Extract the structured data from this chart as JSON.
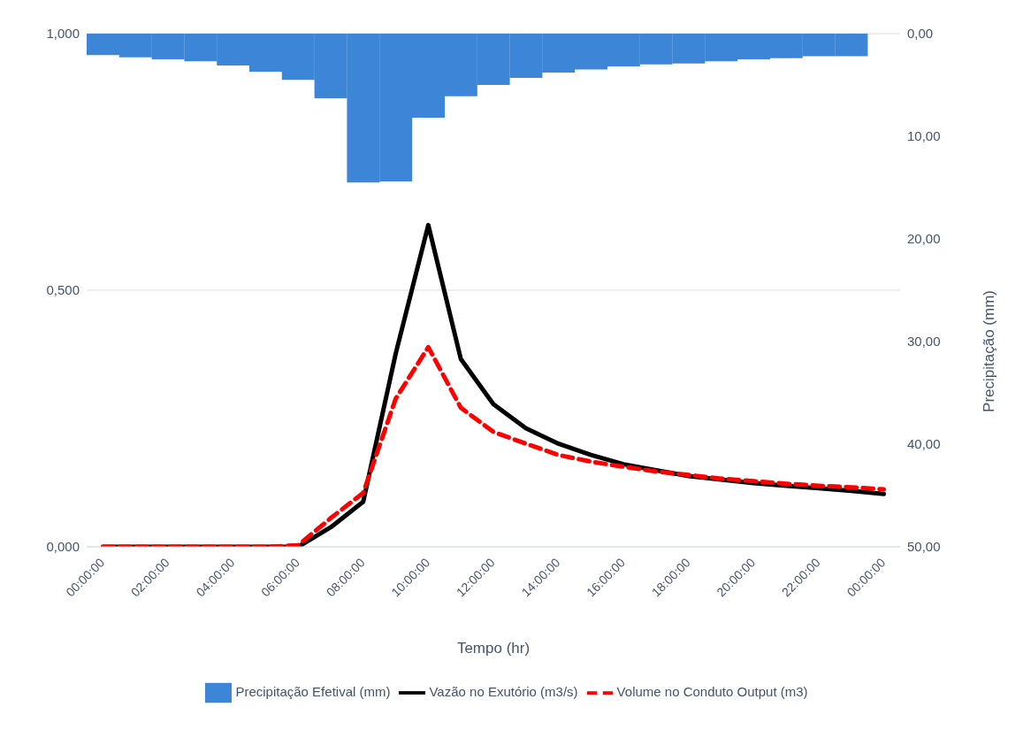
{
  "chart_data": {
    "type": "line",
    "xlabel": "Tempo (hr)",
    "y2label": "Precipitação (mm)",
    "categories": [
      "00:00:00",
      null,
      "02:00:00",
      null,
      "04:00:00",
      null,
      "06:00:00",
      null,
      "08:00:00",
      null,
      "10:00:00",
      null,
      "12:00:00",
      null,
      "14:00:00",
      null,
      "16:00:00",
      null,
      "18:00:00",
      null,
      "20:00:00",
      null,
      "22:00:00",
      null,
      "00:00:00"
    ],
    "series": [
      {
        "name": "Precipitação Efetival (mm)",
        "type": "bar",
        "axis": "y2",
        "color": "#3d85d6",
        "values": [
          2.1,
          2.3,
          2.5,
          2.7,
          3.1,
          3.7,
          4.5,
          6.3,
          14.5,
          14.4,
          8.2,
          6.1,
          5.0,
          4.3,
          3.8,
          3.5,
          3.2,
          3.0,
          2.9,
          2.7,
          2.5,
          2.4,
          2.2,
          2.2,
          null
        ]
      },
      {
        "name": "Vazão no Exutório (m3/s)",
        "color": "#000000",
        "line_style": "solid",
        "values": [
          0,
          0,
          0,
          0,
          0,
          0,
          0,
          0.038,
          0.088,
          0.377,
          0.627,
          0.366,
          0.278,
          0.231,
          0.201,
          0.179,
          0.161,
          0.149,
          0.138,
          0.131,
          0.124,
          0.119,
          0.114,
          0.109,
          0.103
        ]
      },
      {
        "name": "Volume no Conduto Output (m3)",
        "color": "#ff0000",
        "line_style": "dashed",
        "values": [
          0,
          0,
          0,
          0,
          0,
          0,
          0.003,
          0.056,
          0.105,
          0.289,
          0.389,
          0.271,
          0.224,
          0.201,
          0.179,
          0.166,
          0.156,
          0.147,
          0.14,
          0.133,
          0.128,
          0.123,
          0.119,
          0.116,
          0.112
        ]
      }
    ],
    "ylim": [
      0,
      1
    ],
    "yticks": [
      {
        "value": 0,
        "label": "0,000"
      },
      {
        "value": 0.5,
        "label": "0,500"
      },
      {
        "value": 1,
        "label": "1,000"
      }
    ],
    "y2lim": [
      50,
      0
    ],
    "y2ticks": [
      {
        "value": 0,
        "label": "0,00"
      },
      {
        "value": 10,
        "label": "10,00"
      },
      {
        "value": 20,
        "label": "20,00"
      },
      {
        "value": 30,
        "label": "30,00"
      },
      {
        "value": 40,
        "label": "40,00"
      },
      {
        "value": 50,
        "label": "50,00"
      }
    ],
    "grid": "y",
    "legend": "bottom",
    "marker": "none"
  }
}
